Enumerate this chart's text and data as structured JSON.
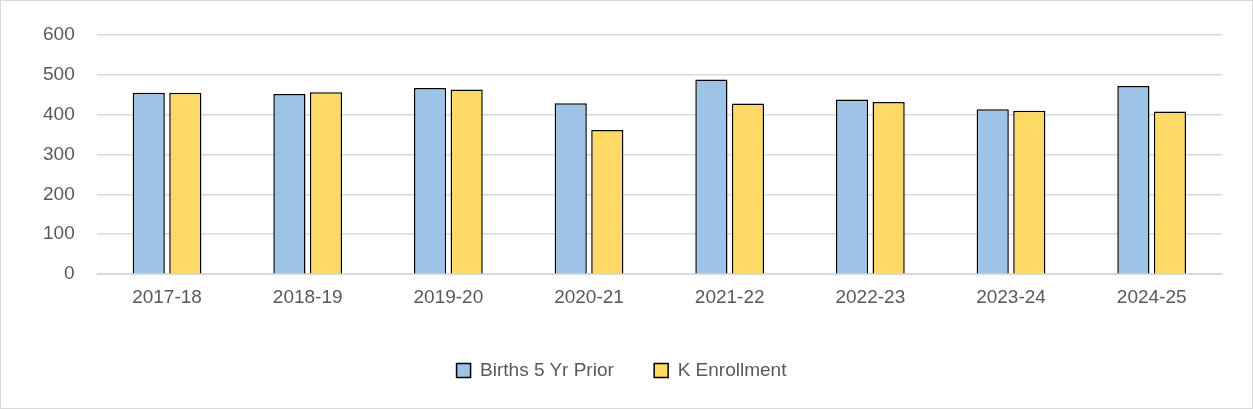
{
  "chart_data": {
    "type": "bar",
    "categories": [
      "2017-18",
      "2018-19",
      "2019-20",
      "2020-21",
      "2021-22",
      "2022-23",
      "2023-24",
      "2024-25"
    ],
    "series": [
      {
        "name": "Births 5 Yr Prior",
        "color": "#9dc3e6",
        "values": [
          454,
          451,
          466,
          428,
          487,
          437,
          413,
          471
        ]
      },
      {
        "name": "K Enrollment",
        "color": "#ffd966",
        "values": [
          454,
          455,
          462,
          361,
          427,
          431,
          409,
          407
        ]
      }
    ],
    "ylim": [
      0,
      600
    ],
    "yticks": [
      0,
      100,
      200,
      300,
      400,
      500,
      600
    ],
    "grid": "y",
    "legend": "bottom"
  }
}
